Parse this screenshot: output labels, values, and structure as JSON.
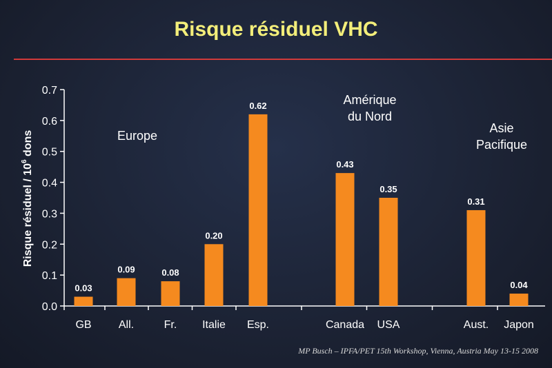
{
  "slide": {
    "title": "Risque résiduel VHC",
    "footer": "MP Busch – IPFA/PET 15th Workshop, Vienna, Austria May 13-15 2008"
  },
  "colors": {
    "bar": "#f58a1f",
    "axis": "#ffffff",
    "rule": "#d23a3a",
    "title": "#f3ee7a"
  },
  "chart_data": {
    "type": "bar",
    "ylabel_main": "Risque résiduel  / 10",
    "ylabel_sup": "6",
    "ylabel_tail": " dons",
    "ylim": [
      0,
      0.7
    ],
    "yticks": [
      "0.0",
      "0.1",
      "0.2",
      "0.3",
      "0.4",
      "0.5",
      "0.6",
      "0.7"
    ],
    "categories": [
      "GB",
      "All.",
      "Fr.",
      "Italie",
      "Esp.",
      "Canada",
      "USA",
      "Aust.",
      "Japon"
    ],
    "values": [
      0.03,
      0.09,
      0.08,
      0.2,
      0.62,
      0.43,
      0.35,
      0.31,
      0.04
    ],
    "data_labels": [
      "0.03",
      "0.09",
      "0.08",
      "0.20",
      "0.62",
      "0.43",
      "0.35",
      "0.31",
      "0.04"
    ],
    "groups": [
      {
        "lines": [
          "Europe"
        ]
      },
      {
        "lines": [
          "Amérique",
          "du Nord"
        ]
      },
      {
        "lines": [
          "Asie",
          "Pacifique"
        ]
      }
    ]
  }
}
